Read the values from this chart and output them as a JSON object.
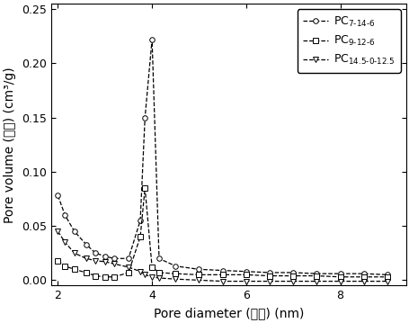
{
  "series": [
    {
      "label_main": "PC",
      "label_sub": "7-14-6",
      "marker": "o",
      "linestyle": "--",
      "x": [
        2.0,
        2.15,
        2.35,
        2.6,
        2.8,
        3.0,
        3.2,
        3.5,
        3.75,
        3.85,
        4.0,
        4.15,
        4.5,
        5.0,
        5.5,
        6.0,
        6.5,
        7.0,
        7.5,
        8.0,
        8.5,
        9.0
      ],
      "y": [
        0.078,
        0.06,
        0.045,
        0.033,
        0.025,
        0.022,
        0.02,
        0.02,
        0.055,
        0.15,
        0.222,
        0.02,
        0.013,
        0.01,
        0.009,
        0.008,
        0.007,
        0.007,
        0.006,
        0.006,
        0.006,
        0.005
      ]
    },
    {
      "label_main": "PC",
      "label_sub": "9-12-6",
      "marker": "s",
      "linestyle": "--",
      "x": [
        2.0,
        2.15,
        2.35,
        2.6,
        2.8,
        3.0,
        3.2,
        3.5,
        3.75,
        3.85,
        4.0,
        4.15,
        4.5,
        5.0,
        5.5,
        6.0,
        6.5,
        7.0,
        7.5,
        8.0,
        8.5,
        9.0
      ],
      "y": [
        0.018,
        0.013,
        0.01,
        0.007,
        0.004,
        0.003,
        0.003,
        0.007,
        0.04,
        0.085,
        0.012,
        0.007,
        0.006,
        0.005,
        0.005,
        0.005,
        0.004,
        0.004,
        0.004,
        0.003,
        0.003,
        0.003
      ]
    },
    {
      "label_main": "PC",
      "label_sub": "14.5-0-12.5",
      "marker": "v",
      "linestyle": "--",
      "x": [
        2.0,
        2.15,
        2.35,
        2.6,
        2.8,
        3.0,
        3.2,
        3.5,
        3.75,
        3.85,
        4.0,
        4.15,
        4.5,
        5.0,
        5.5,
        6.0,
        6.5,
        7.0,
        7.5,
        8.0,
        8.5,
        9.0
      ],
      "y": [
        0.045,
        0.035,
        0.025,
        0.02,
        0.018,
        0.017,
        0.015,
        0.012,
        0.008,
        0.005,
        0.003,
        0.002,
        0.001,
        0.0,
        -0.001,
        -0.001,
        -0.001,
        -0.001,
        -0.001,
        -0.001,
        -0.001,
        -0.001
      ]
    }
  ],
  "xlabel_en": "Pore diameter (",
  "xlabel_zh": "孔径",
  "xlabel_end": ") (nm)",
  "ylabel_en": "Pore volume (",
  "ylabel_zh": "孔容",
  "ylabel_end": ") (cm³/g)",
  "xlim": [
    1.85,
    9.4
  ],
  "ylim": [
    -0.005,
    0.255
  ],
  "yticks": [
    0.0,
    0.05,
    0.1,
    0.15,
    0.2,
    0.25
  ],
  "xticks": [
    2,
    4,
    6,
    8
  ],
  "legend_loc": "upper right",
  "figsize": [
    4.56,
    3.59
  ],
  "dpi": 100,
  "color": "black",
  "markersize": 4,
  "linewidth": 0.9
}
